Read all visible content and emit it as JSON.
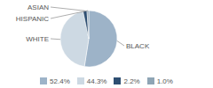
{
  "chart_data": {
    "type": "pie",
    "categories": [
      "BLACK",
      "WHITE",
      "ASIAN",
      "HISPANIC"
    ],
    "values": [
      52.4,
      44.3,
      2.2,
      1.0
    ],
    "value_labels": [
      "52.4%",
      "44.3%",
      "2.2%",
      "1.0%"
    ],
    "colors": [
      "#9db3c8",
      "#cdd9e3",
      "#2e4f72",
      "#8fa5b5"
    ],
    "legend": "bottom"
  }
}
